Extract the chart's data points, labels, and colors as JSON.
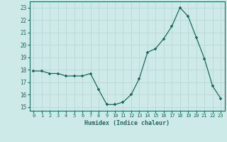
{
  "x": [
    0,
    1,
    2,
    3,
    4,
    5,
    6,
    7,
    8,
    9,
    10,
    11,
    12,
    13,
    14,
    15,
    16,
    17,
    18,
    19,
    20,
    21,
    22,
    23
  ],
  "y": [
    17.9,
    17.9,
    17.7,
    17.7,
    17.5,
    17.5,
    17.5,
    17.7,
    16.4,
    15.2,
    15.2,
    15.4,
    16.0,
    17.3,
    19.4,
    19.7,
    20.5,
    21.5,
    23.0,
    22.3,
    20.6,
    18.9,
    16.7,
    15.7
  ],
  "line_color": "#1a6b5a",
  "marker": "+",
  "marker_size": 3.5,
  "marker_lw": 1.2,
  "bg_color": "#ceeae8",
  "grid_color": "#b8d8d5",
  "tick_color": "#1a6b5a",
  "label_color": "#1a6b5a",
  "xlabel": "Humidex (Indice chaleur)",
  "ylim": [
    14.7,
    23.5
  ],
  "yticks": [
    15,
    16,
    17,
    18,
    19,
    20,
    21,
    22,
    23
  ],
  "xticks": [
    0,
    1,
    2,
    3,
    4,
    5,
    6,
    7,
    8,
    9,
    10,
    11,
    12,
    13,
    14,
    15,
    16,
    17,
    18,
    19,
    20,
    21,
    22,
    23
  ],
  "xlim": [
    -0.5,
    23.5
  ]
}
